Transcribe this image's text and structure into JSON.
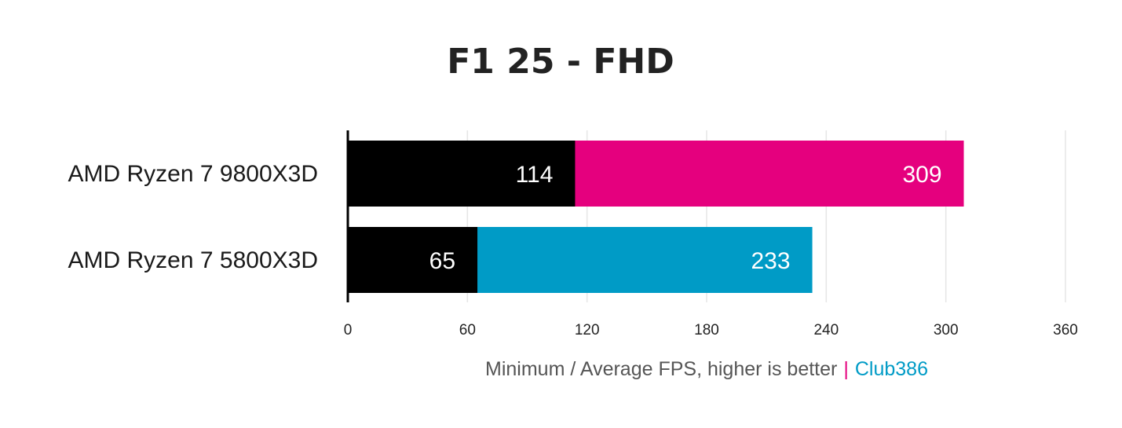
{
  "chart_data": {
    "type": "bar",
    "orientation": "horizontal",
    "stacked": "overlay",
    "title": "F1 25 - FHD",
    "categories": [
      "AMD Ryzen 7 9800X3D",
      "AMD Ryzen 7 5800X3D"
    ],
    "series": [
      {
        "name": "Minimum",
        "values": [
          114,
          65
        ],
        "color": "#000000"
      },
      {
        "name": "Average",
        "values": [
          309,
          233
        ],
        "colors": [
          "#e5007e",
          "#009bc6"
        ]
      }
    ],
    "xlim": [
      0,
      360
    ],
    "xticks": [
      0,
      60,
      120,
      180,
      240,
      300,
      360
    ],
    "grid": true,
    "legend": "none",
    "caption": {
      "text": "Minimum / Average FPS, higher is better",
      "separator": "|",
      "brand": "Club386",
      "separator_color": "#e5007e",
      "brand_color": "#009bc6",
      "text_color": "#555555"
    }
  }
}
